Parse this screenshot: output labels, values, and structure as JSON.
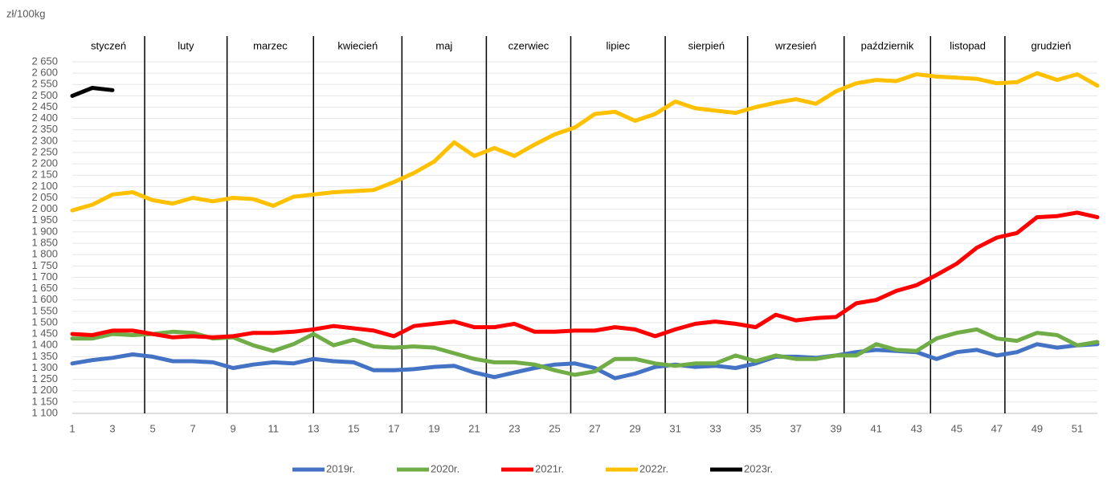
{
  "chart_data": {
    "type": "line",
    "y_unit": "zł/100kg",
    "x": [
      1,
      2,
      3,
      4,
      5,
      6,
      7,
      8,
      9,
      10,
      11,
      12,
      13,
      14,
      15,
      16,
      17,
      18,
      19,
      20,
      21,
      22,
      23,
      24,
      25,
      26,
      27,
      28,
      29,
      30,
      31,
      32,
      33,
      34,
      35,
      36,
      37,
      38,
      39,
      40,
      41,
      42,
      43,
      44,
      45,
      46,
      47,
      48,
      49,
      50,
      51,
      52
    ],
    "xlim": [
      1,
      52
    ],
    "xticks": [
      1,
      3,
      5,
      7,
      9,
      11,
      13,
      15,
      17,
      19,
      21,
      23,
      25,
      27,
      29,
      31,
      33,
      35,
      37,
      39,
      41,
      43,
      45,
      47,
      49,
      51
    ],
    "ylim": [
      1100,
      2650
    ],
    "yticks": [
      {
        "value": 1100,
        "label": "1 100"
      },
      {
        "value": 1150,
        "label": "1 150"
      },
      {
        "value": 1200,
        "label": "1 200"
      },
      {
        "value": 1250,
        "label": "1 250"
      },
      {
        "value": 1300,
        "label": "1 300"
      },
      {
        "value": 1350,
        "label": "1 350"
      },
      {
        "value": 1400,
        "label": "1 400"
      },
      {
        "value": 1450,
        "label": "1 450"
      },
      {
        "value": 1500,
        "label": "1 500"
      },
      {
        "value": 1550,
        "label": "1 550"
      },
      {
        "value": 1600,
        "label": "1 600"
      },
      {
        "value": 1650,
        "label": "1 650"
      },
      {
        "value": 1700,
        "label": "1 700"
      },
      {
        "value": 1750,
        "label": "1 750"
      },
      {
        "value": 1800,
        "label": "1 800"
      },
      {
        "value": 1850,
        "label": "1 850"
      },
      {
        "value": 1900,
        "label": "1 900"
      },
      {
        "value": 1950,
        "label": "1 950"
      },
      {
        "value": 2000,
        "label": "2 000"
      },
      {
        "value": 2050,
        "label": "2 050"
      },
      {
        "value": 2100,
        "label": "2 100"
      },
      {
        "value": 2150,
        "label": "2 150"
      },
      {
        "value": 2200,
        "label": "2 200"
      },
      {
        "value": 2250,
        "label": "2 250"
      },
      {
        "value": 2300,
        "label": "2 300"
      },
      {
        "value": 2350,
        "label": "2 350"
      },
      {
        "value": 2400,
        "label": "2 400"
      },
      {
        "value": 2450,
        "label": "2 450"
      },
      {
        "value": 2500,
        "label": "2 500"
      },
      {
        "value": 2550,
        "label": "2 550"
      },
      {
        "value": 2600,
        "label": "2 600"
      },
      {
        "value": 2650,
        "label": "2 650"
      }
    ],
    "months": [
      "styczeń",
      "luty",
      "marzec",
      "kwiecień",
      "maj",
      "czerwiec",
      "lipiec",
      "sierpień",
      "wrzesień",
      "październik",
      "listopad",
      "grudzień"
    ],
    "month_bounds": [
      4.6,
      8.7,
      13,
      17.4,
      21.6,
      25.8,
      30.5,
      34.6,
      39.4,
      43.7,
      47.4
    ],
    "legend": "bottom",
    "series": [
      {
        "name": "2019r.",
        "color": "#4472c4",
        "values": [
          1320,
          1335,
          1345,
          1360,
          1350,
          1330,
          1330,
          1325,
          1300,
          1315,
          1325,
          1320,
          1340,
          1330,
          1325,
          1290,
          1290,
          1295,
          1305,
          1310,
          1280,
          1260,
          1280,
          1300,
          1315,
          1320,
          1300,
          1255,
          1275,
          1305,
          1315,
          1305,
          1310,
          1300,
          1320,
          1350,
          1350,
          1345,
          1355,
          1370,
          1380,
          1375,
          1370,
          1340,
          1370,
          1380,
          1355,
          1370,
          1405,
          1390,
          1400,
          1405
        ]
      },
      {
        "name": "2020r.",
        "color": "#70ad47",
        "values": [
          1430,
          1430,
          1450,
          1445,
          1450,
          1460,
          1455,
          1430,
          1435,
          1400,
          1375,
          1405,
          1450,
          1400,
          1425,
          1395,
          1390,
          1395,
          1390,
          1365,
          1340,
          1325,
          1325,
          1315,
          1290,
          1270,
          1285,
          1340,
          1340,
          1320,
          1310,
          1320,
          1320,
          1355,
          1330,
          1355,
          1340,
          1340,
          1355,
          1355,
          1405,
          1380,
          1375,
          1430,
          1455,
          1470,
          1430,
          1420,
          1455,
          1445,
          1400,
          1415
        ]
      },
      {
        "name": "2021r.",
        "color": "#ff0000",
        "values": [
          1450,
          1445,
          1465,
          1465,
          1450,
          1435,
          1440,
          1435,
          1440,
          1455,
          1455,
          1460,
          1470,
          1485,
          1475,
          1465,
          1440,
          1485,
          1495,
          1505,
          1480,
          1480,
          1495,
          1460,
          1460,
          1465,
          1465,
          1480,
          1470,
          1440,
          1470,
          1495,
          1505,
          1495,
          1480,
          1535,
          1510,
          1520,
          1525,
          1585,
          1600,
          1640,
          1665,
          1710,
          1760,
          1830,
          1875,
          1895,
          1965,
          1970,
          1985,
          1965
        ]
      },
      {
        "name": "2022r.",
        "color": "#ffc000",
        "values": [
          1995,
          2020,
          2065,
          2075,
          2040,
          2025,
          2050,
          2035,
          2050,
          2045,
          2015,
          2055,
          2065,
          2075,
          2080,
          2085,
          2120,
          2160,
          2210,
          2295,
          2235,
          2270,
          2235,
          2285,
          2330,
          2360,
          2420,
          2430,
          2390,
          2420,
          2475,
          2445,
          2435,
          2425,
          2450,
          2470,
          2485,
          2465,
          2520,
          2555,
          2570,
          2565,
          2595,
          2585,
          2580,
          2575,
          2555,
          2560,
          2600,
          2570,
          2595,
          2545
        ]
      },
      {
        "name": "2023r.",
        "color": "#000000",
        "values": [
          2500,
          2535,
          2525,
          null,
          null,
          null,
          null,
          null,
          null,
          null,
          null,
          null,
          null,
          null,
          null,
          null,
          null,
          null,
          null,
          null,
          null,
          null,
          null,
          null,
          null,
          null,
          null,
          null,
          null,
          null,
          null,
          null,
          null,
          null,
          null,
          null,
          null,
          null,
          null,
          null,
          null,
          null,
          null,
          null,
          null,
          null,
          null,
          null,
          null,
          null,
          null,
          null
        ]
      }
    ]
  }
}
